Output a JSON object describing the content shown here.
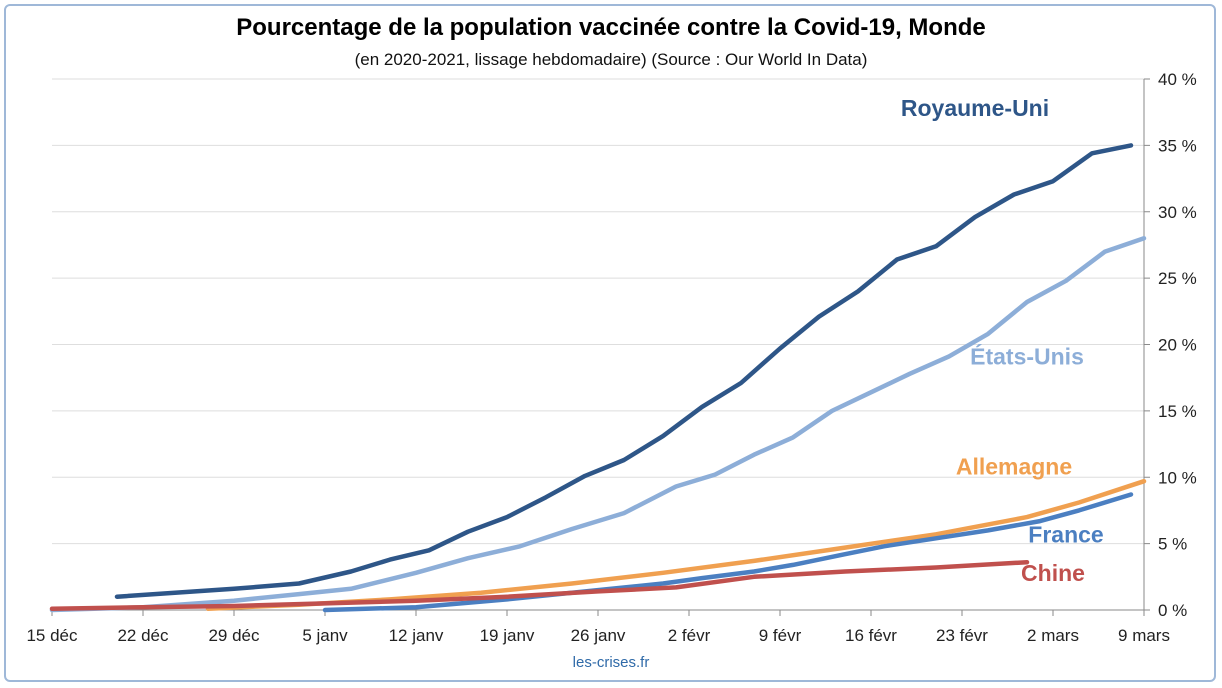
{
  "chart_data": {
    "type": "line",
    "title": "Pourcentage de la population vaccinée contre la Covid-19, Monde",
    "subtitle": "(en 2020-2021, lissage hebdomadaire) (Source : Our World In Data)",
    "source_note": "les-crises.fr",
    "xlabel": "",
    "ylabel": "",
    "x_range": [
      "2020-12-15",
      "2021-03-09"
    ],
    "ylim": [
      0,
      40
    ],
    "y_ticks": [
      0,
      5,
      10,
      15,
      20,
      25,
      30,
      35,
      40
    ],
    "y_tick_labels": [
      "0 %",
      "5 %",
      "10 %",
      "15 %",
      "20 %",
      "25 %",
      "30 %",
      "35 %",
      "40 %"
    ],
    "x_ticks": [
      "2020-12-15",
      "2020-12-22",
      "2020-12-29",
      "2021-01-05",
      "2021-01-12",
      "2021-01-19",
      "2021-01-26",
      "2021-02-02",
      "2021-02-09",
      "2021-02-16",
      "2021-02-23",
      "2021-03-02",
      "2021-03-09"
    ],
    "x_tick_labels": [
      "15 déc",
      "22 déc",
      "29 déc",
      "5 janv",
      "12 janv",
      "19 janv",
      "26 janv",
      "2 févr",
      "9 févr",
      "16 févr",
      "23 févr",
      "2 mars",
      "9 mars"
    ],
    "y_axis_position": "right",
    "grid": "horizontal",
    "legend": "inline labels",
    "series": [
      {
        "name": "Royaume-Uni",
        "color": "#2e5688",
        "points": [
          [
            "2020-12-20",
            1.0
          ],
          [
            "2020-12-29",
            1.6
          ],
          [
            "2021-01-03",
            2.0
          ],
          [
            "2021-01-07",
            2.9
          ],
          [
            "2021-01-10",
            3.8
          ],
          [
            "2021-01-13",
            4.5
          ],
          [
            "2021-01-16",
            5.9
          ],
          [
            "2021-01-19",
            7.0
          ],
          [
            "2021-01-22",
            8.5
          ],
          [
            "2021-01-25",
            10.1
          ],
          [
            "2021-01-28",
            11.3
          ],
          [
            "2021-01-31",
            13.1
          ],
          [
            "2021-02-03",
            15.3
          ],
          [
            "2021-02-06",
            17.1
          ],
          [
            "2021-02-09",
            19.7
          ],
          [
            "2021-02-12",
            22.1
          ],
          [
            "2021-02-15",
            24.0
          ],
          [
            "2021-02-18",
            26.4
          ],
          [
            "2021-02-21",
            27.4
          ],
          [
            "2021-02-24",
            29.6
          ],
          [
            "2021-02-27",
            31.3
          ],
          [
            "2021-03-02",
            32.3
          ],
          [
            "2021-03-05",
            34.4
          ],
          [
            "2021-03-08",
            35.0
          ]
        ]
      },
      {
        "name": "États-Unis",
        "color": "#8daed8",
        "points": [
          [
            "2020-12-15",
            0.0
          ],
          [
            "2020-12-22",
            0.2
          ],
          [
            "2020-12-29",
            0.7
          ],
          [
            "2021-01-03",
            1.2
          ],
          [
            "2021-01-07",
            1.6
          ],
          [
            "2021-01-12",
            2.8
          ],
          [
            "2021-01-16",
            3.9
          ],
          [
            "2021-01-20",
            4.8
          ],
          [
            "2021-01-24",
            6.1
          ],
          [
            "2021-01-28",
            7.3
          ],
          [
            "2021-02-01",
            9.3
          ],
          [
            "2021-02-04",
            10.2
          ],
          [
            "2021-02-07",
            11.7
          ],
          [
            "2021-02-10",
            13.0
          ],
          [
            "2021-02-13",
            15.0
          ],
          [
            "2021-02-16",
            16.4
          ],
          [
            "2021-02-19",
            17.8
          ],
          [
            "2021-02-22",
            19.1
          ],
          [
            "2021-02-25",
            20.8
          ],
          [
            "2021-02-28",
            23.2
          ],
          [
            "2021-03-03",
            24.8
          ],
          [
            "2021-03-06",
            27.0
          ],
          [
            "2021-03-09",
            28.0
          ]
        ]
      },
      {
        "name": "Allemagne",
        "color": "#f0a050",
        "points": [
          [
            "2020-12-27",
            0.1
          ],
          [
            "2021-01-03",
            0.4
          ],
          [
            "2021-01-10",
            0.8
          ],
          [
            "2021-01-17",
            1.3
          ],
          [
            "2021-01-24",
            2.0
          ],
          [
            "2021-01-31",
            2.8
          ],
          [
            "2021-02-07",
            3.7
          ],
          [
            "2021-02-14",
            4.7
          ],
          [
            "2021-02-21",
            5.7
          ],
          [
            "2021-02-28",
            7.0
          ],
          [
            "2021-03-04",
            8.1
          ],
          [
            "2021-03-09",
            9.7
          ]
        ]
      },
      {
        "name": "France",
        "color": "#4b7fc1",
        "points": [
          [
            "2021-01-05",
            0.0
          ],
          [
            "2021-01-12",
            0.2
          ],
          [
            "2021-01-19",
            0.8
          ],
          [
            "2021-01-24",
            1.3
          ],
          [
            "2021-01-31",
            2.0
          ],
          [
            "2021-02-03",
            2.4
          ],
          [
            "2021-02-07",
            2.9
          ],
          [
            "2021-02-10",
            3.4
          ],
          [
            "2021-02-14",
            4.2
          ],
          [
            "2021-02-17",
            4.8
          ],
          [
            "2021-02-21",
            5.4
          ],
          [
            "2021-02-25",
            6.0
          ],
          [
            "2021-03-01",
            6.7
          ],
          [
            "2021-03-04",
            7.5
          ],
          [
            "2021-03-08",
            8.7
          ]
        ]
      },
      {
        "name": "Chine",
        "color": "#c0504d",
        "points": [
          [
            "2020-12-15",
            0.1
          ],
          [
            "2020-12-22",
            0.2
          ],
          [
            "2020-12-29",
            0.3
          ],
          [
            "2021-01-05",
            0.5
          ],
          [
            "2021-01-12",
            0.7
          ],
          [
            "2021-01-19",
            1.0
          ],
          [
            "2021-01-26",
            1.4
          ],
          [
            "2021-02-01",
            1.7
          ],
          [
            "2021-02-07",
            2.5
          ],
          [
            "2021-02-14",
            2.9
          ],
          [
            "2021-02-21",
            3.2
          ],
          [
            "2021-02-28",
            3.6
          ]
        ]
      }
    ],
    "labels": [
      {
        "series": "Royaume-Uni",
        "text": "Royaume-Uni",
        "color": "#2e5688",
        "anchor": [
          "2021-02-24",
          37.2
        ]
      },
      {
        "series": "États-Unis",
        "text": "États-Unis",
        "color": "#8daed8",
        "anchor": [
          "2021-02-28",
          18.5
        ]
      },
      {
        "series": "Allemagne",
        "text": "Allemagne",
        "color": "#f0a050",
        "anchor": [
          "2021-02-27",
          10.2
        ]
      },
      {
        "series": "France",
        "text": "France",
        "color": "#4b7fc1",
        "anchor": [
          "2021-03-03",
          5.1
        ]
      },
      {
        "series": "Chine",
        "text": "Chine",
        "color": "#c0504d",
        "anchor": [
          "2021-03-02",
          2.2
        ]
      }
    ]
  }
}
